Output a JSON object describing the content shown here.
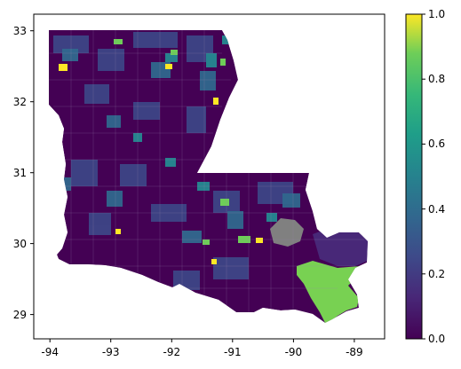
{
  "figure": {
    "x_axis": {
      "range": [
        -94.4,
        -88.5
      ],
      "ticks": [
        "-94",
        "-93",
        "-92",
        "-91",
        "-90",
        "-89"
      ],
      "tick_values": [
        -94,
        -93,
        -92,
        -91,
        -90,
        -89
      ]
    },
    "y_axis": {
      "range": [
        28.65,
        33.2
      ],
      "ticks": [
        "29",
        "30",
        "31",
        "32",
        "33"
      ],
      "tick_values": [
        29,
        30,
        31,
        32,
        33
      ]
    },
    "colorbar": {
      "colormap": "viridis",
      "range": [
        0,
        1
      ],
      "ticks": [
        "0.0",
        "0.2",
        "0.4",
        "0.6",
        "0.8",
        "1.0"
      ],
      "tick_values": [
        0.0,
        0.2,
        0.4,
        0.6,
        0.8,
        1.0
      ],
      "colors": [
        "#440154",
        "#3b528b",
        "#21918c",
        "#5ec962",
        "#fde725"
      ]
    },
    "map": {
      "region": "Louisiana census tracts (choropleth)",
      "missing_color": "#808080",
      "predominant_value": 0.05,
      "highlight_areas": [
        {
          "name": "plaquemines-delta",
          "value": 0.75
        },
        {
          "name": "lake-pontchartrain-missing",
          "value": null
        },
        {
          "name": "lake-borgne-area",
          "value": 0.1
        }
      ]
    }
  }
}
